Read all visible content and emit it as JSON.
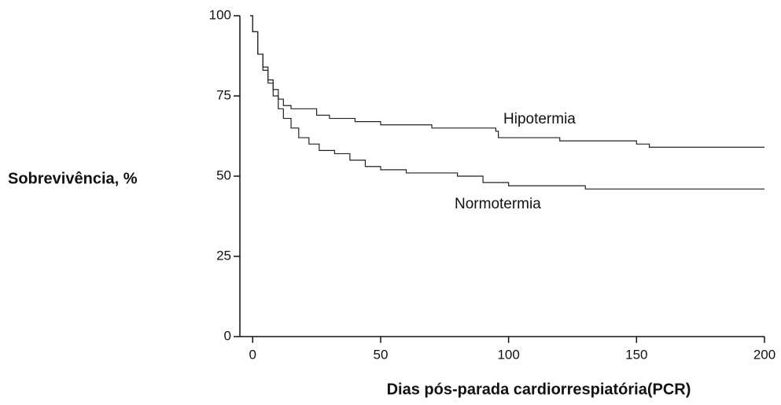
{
  "chart_data": {
    "type": "line",
    "step": true,
    "xlabel": "Dias pós-parada cardiorrespiatória(PCR)",
    "ylabel": "Sobrevivência, %",
    "xlim": [
      -5,
      200
    ],
    "ylim": [
      0,
      100
    ],
    "xticks": [
      0,
      50,
      100,
      150,
      200
    ],
    "yticks": [
      0,
      25,
      50,
      75,
      100
    ],
    "series": [
      {
        "name": "Hipotermia",
        "color": "#222222",
        "x": [
          -1,
          0,
          2,
          4,
          6,
          8,
          10,
          12,
          15,
          25,
          30,
          40,
          50,
          70,
          95,
          96,
          120,
          150,
          155,
          200
        ],
        "values": [
          100,
          95,
          88,
          84,
          80,
          77,
          74,
          72,
          71,
          69,
          68,
          67,
          66,
          65,
          64,
          62,
          61,
          60,
          59,
          59
        ]
      },
      {
        "name": "Normotermia",
        "color": "#222222",
        "x": [
          -1,
          0,
          2,
          4,
          6,
          8,
          10,
          12,
          15,
          18,
          22,
          26,
          32,
          38,
          44,
          50,
          60,
          80,
          90,
          100,
          130,
          200
        ],
        "values": [
          100,
          95,
          88,
          83,
          79,
          75,
          71,
          68,
          65,
          62,
          60,
          58,
          57,
          55,
          53,
          52,
          51,
          50,
          48,
          47,
          46,
          46
        ]
      }
    ]
  }
}
